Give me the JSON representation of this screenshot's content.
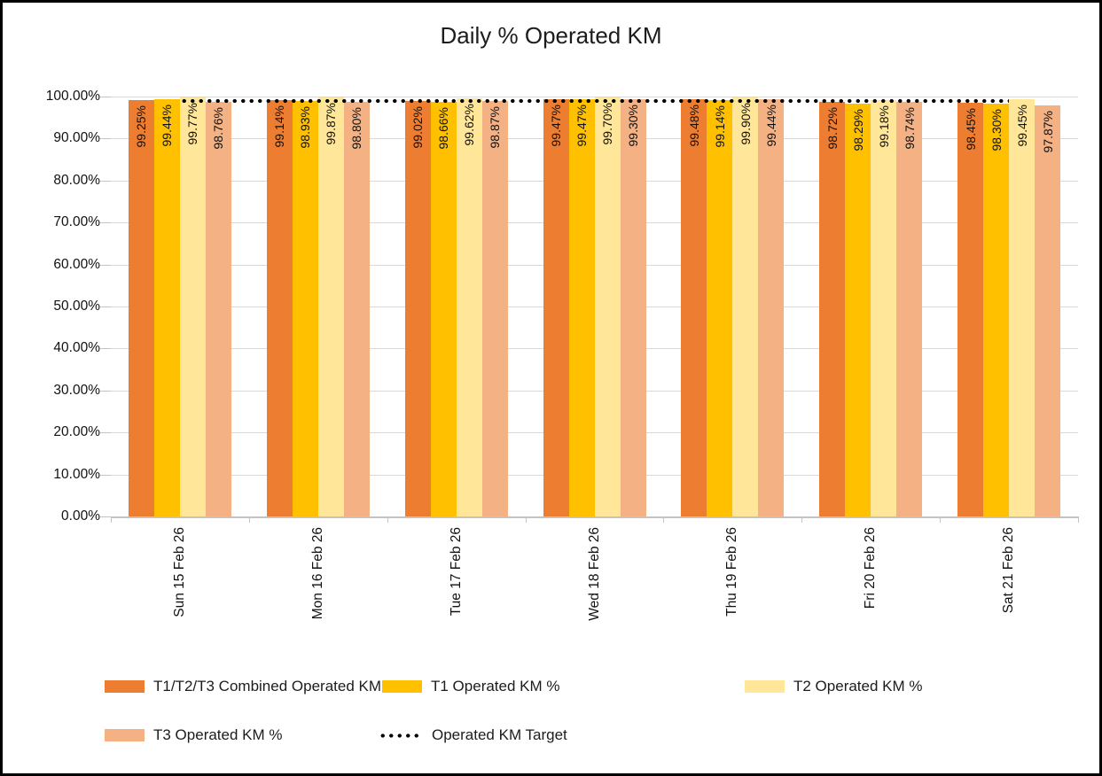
{
  "title": "Daily % Operated KM",
  "chart_data": {
    "type": "bar",
    "title": "Daily % Operated KM",
    "categories": [
      "Sun 15 Feb 26",
      "Mon 16 Feb 26",
      "Tue 17 Feb 26",
      "Wed 18 Feb 26",
      "Thu 19 Feb 26",
      "Fri 20 Feb 26",
      "Sat 21 Feb 26"
    ],
    "series": [
      {
        "name": "T1/T2/T3 Combined Operated KM %",
        "color": "#ED7D31",
        "values": [
          99.25,
          99.14,
          99.02,
          99.47,
          99.48,
          98.72,
          98.45
        ],
        "labels": [
          "99.25%",
          "99.14%",
          "99.02%",
          "99.47%",
          "99.48%",
          "98.72%",
          "98.45%"
        ]
      },
      {
        "name": "T1 Operated KM %",
        "color": "#FFC000",
        "values": [
          99.44,
          98.93,
          98.66,
          99.47,
          99.14,
          98.29,
          98.3
        ],
        "labels": [
          "99.44%",
          "98.93%",
          "98.66%",
          "99.47%",
          "99.14%",
          "98.29%",
          "98.30%"
        ]
      },
      {
        "name": "T2 Operated KM %",
        "color": "#FFE699",
        "values": [
          99.77,
          99.87,
          99.62,
          99.7,
          99.9,
          99.18,
          99.45
        ],
        "labels": [
          "99.77%",
          "99.87%",
          "99.62%",
          "99.70%",
          "99.90%",
          "99.18%",
          "99.45%"
        ]
      },
      {
        "name": "T3 Operated KM %",
        "color": "#F4B183",
        "values": [
          98.76,
          98.8,
          98.87,
          99.3,
          99.44,
          98.74,
          97.87
        ],
        "labels": [
          "98.76%",
          "98.80%",
          "98.87%",
          "99.30%",
          "99.44%",
          "98.74%",
          "97.87%"
        ]
      }
    ],
    "target_line": {
      "name": "Operated KM Target",
      "value": 99,
      "style": "dotted",
      "color": "#000000"
    },
    "y_axis": {
      "min": 0,
      "max": 100,
      "step": 10,
      "tick_labels": [
        "100.00%",
        "90.00%",
        "80.00%",
        "70.00%",
        "60.00%",
        "50.00%",
        "40.00%",
        "30.00%",
        "20.00%",
        "10.00%",
        "0.00%"
      ]
    },
    "legend_position": "bottom",
    "grid": true
  },
  "legend": {
    "items": [
      {
        "label": "T1/T2/T3 Combined Operated KM %",
        "swatch": "bar",
        "color": "#ED7D31"
      },
      {
        "label": "T1 Operated KM %",
        "swatch": "bar",
        "color": "#FFC000"
      },
      {
        "label": "T2 Operated KM %",
        "swatch": "bar",
        "color": "#FFE699"
      },
      {
        "label": "T3 Operated KM %",
        "swatch": "bar",
        "color": "#F4B183"
      },
      {
        "label": "Operated KM Target",
        "swatch": "dotted-line",
        "color": "#000000"
      }
    ]
  }
}
